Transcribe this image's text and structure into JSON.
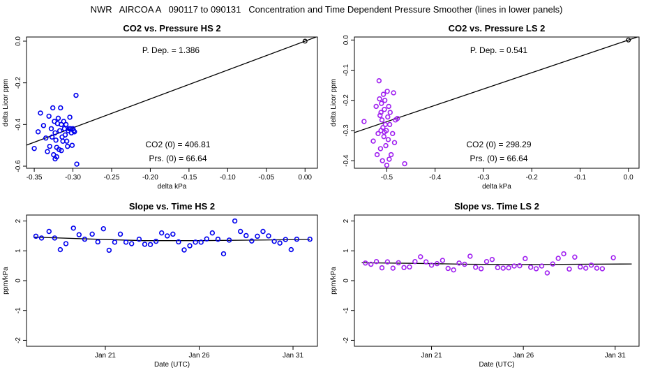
{
  "page": {
    "title": "NWR   AIRCOA A   090117 to 090131   Concentration and Time Dependent Pressure Smoother (lines in lower panels)"
  },
  "colors": {
    "hs": "#0000ee",
    "ls": "#a020f0",
    "line": "#000000"
  },
  "chart_data": [
    {
      "id": "co2-pressure-hs",
      "type": "scatter",
      "title": "CO2 vs. Pressure HS 2",
      "xlabel": "delta kPa",
      "ylabel": "delta Licor ppm",
      "xlim": [
        -0.36,
        0.016
      ],
      "ylim": [
        -0.61,
        0.02
      ],
      "xticks": [
        -0.35,
        -0.3,
        -0.25,
        -0.2,
        -0.15,
        -0.1,
        -0.05,
        0.0
      ],
      "xtick_labels": [
        "-0.35",
        "-0.30",
        "-0.25",
        "-0.20",
        "-0.15",
        "-0.10",
        "-0.05",
        "0.00"
      ],
      "yticks": [
        0.0,
        -0.2,
        -0.4,
        -0.6
      ],
      "ytick_labels": [
        "0.0",
        "-0.2",
        "-0.4",
        "-0.6"
      ],
      "annotations": {
        "p_dep": "P. Dep. =  1.386",
        "co2_zero": "CO2 (0) =  406.81",
        "prs_zero": "Prs. (0) =  66.64"
      },
      "fit_line": {
        "slope": 1.386,
        "intercept": 0.0
      },
      "origin_point": [
        0.0,
        0.0
      ],
      "points": [
        [
          -0.35,
          -0.515
        ],
        [
          -0.345,
          -0.435
        ],
        [
          -0.342,
          -0.345
        ],
        [
          -0.338,
          -0.405
        ],
        [
          -0.335,
          -0.465
        ],
        [
          -0.333,
          -0.53
        ],
        [
          -0.331,
          -0.36
        ],
        [
          -0.33,
          -0.505
        ],
        [
          -0.328,
          -0.42
        ],
        [
          -0.327,
          -0.46
        ],
        [
          -0.326,
          -0.32
        ],
        [
          -0.325,
          -0.545
        ],
        [
          -0.324,
          -0.385
        ],
        [
          -0.323,
          -0.44
        ],
        [
          -0.322,
          -0.475
        ],
        [
          -0.321,
          -0.51
        ],
        [
          -0.32,
          -0.395
        ],
        [
          -0.319,
          -0.37
        ],
        [
          -0.318,
          -0.52
        ],
        [
          -0.317,
          -0.43
        ],
        [
          -0.316,
          -0.32
        ],
        [
          -0.315,
          -0.4
        ],
        [
          -0.314,
          -0.46
        ],
        [
          -0.313,
          -0.48
        ],
        [
          -0.312,
          -0.385
        ],
        [
          -0.311,
          -0.42
        ],
        [
          -0.31,
          -0.45
        ],
        [
          -0.309,
          -0.4
        ],
        [
          -0.308,
          -0.48
        ],
        [
          -0.307,
          -0.505
        ],
        [
          -0.306,
          -0.43
        ],
        [
          -0.305,
          -0.42
        ],
        [
          -0.304,
          -0.365
        ],
        [
          -0.303,
          -0.42
        ],
        [
          -0.302,
          -0.44
        ],
        [
          -0.301,
          -0.5
        ],
        [
          -0.3,
          -0.42
        ],
        [
          -0.299,
          -0.43
        ],
        [
          -0.298,
          -0.435
        ],
        [
          -0.296,
          -0.26
        ],
        [
          -0.295,
          -0.59
        ],
        [
          -0.323,
          -0.565
        ],
        [
          -0.321,
          -0.555
        ],
        [
          -0.315,
          -0.525
        ]
      ]
    },
    {
      "id": "co2-pressure-ls",
      "type": "scatter",
      "title": "CO2 vs. Pressure LS 2",
      "xlabel": "delta kPa",
      "ylabel": "delta Licor ppm",
      "xlim": [
        -0.567,
        0.022
      ],
      "ylim": [
        -0.425,
        0.01
      ],
      "xticks": [
        -0.5,
        -0.4,
        -0.3,
        -0.2,
        -0.1,
        0.0
      ],
      "xtick_labels": [
        "-0.5",
        "-0.4",
        "-0.3",
        "-0.2",
        "-0.1",
        "0.0"
      ],
      "yticks": [
        0.0,
        -0.1,
        -0.2,
        -0.3,
        -0.4
      ],
      "ytick_labels": [
        "0.0",
        "-0.1",
        "-0.2",
        "-0.3",
        "-0.4"
      ],
      "annotations": {
        "p_dep": "P. Dep. =  0.541",
        "co2_zero": "CO2 (0) =  298.29",
        "prs_zero": "Prs. (0) =  66.64"
      },
      "fit_line": {
        "slope": 0.541,
        "intercept": 0.0
      },
      "origin_point": [
        0.0,
        0.0
      ],
      "points": [
        [
          -0.547,
          -0.27
        ],
        [
          -0.528,
          -0.335
        ],
        [
          -0.522,
          -0.22
        ],
        [
          -0.52,
          -0.38
        ],
        [
          -0.518,
          -0.31
        ],
        [
          -0.516,
          -0.135
        ],
        [
          -0.515,
          -0.195
        ],
        [
          -0.514,
          -0.25
        ],
        [
          -0.513,
          -0.36
        ],
        [
          -0.512,
          -0.24
        ],
        [
          -0.511,
          -0.21
        ],
        [
          -0.51,
          -0.265
        ],
        [
          -0.509,
          -0.4
        ],
        [
          -0.508,
          -0.29
        ],
        [
          -0.507,
          -0.18
        ],
        [
          -0.506,
          -0.32
        ],
        [
          -0.505,
          -0.23
        ],
        [
          -0.504,
          -0.2
        ],
        [
          -0.503,
          -0.28
        ],
        [
          -0.502,
          -0.35
        ],
        [
          -0.501,
          -0.3
        ],
        [
          -0.5,
          -0.415
        ],
        [
          -0.499,
          -0.17
        ],
        [
          -0.498,
          -0.255
        ],
        [
          -0.497,
          -0.33
        ],
        [
          -0.496,
          -0.22
        ],
        [
          -0.495,
          -0.395
        ],
        [
          -0.494,
          -0.28
        ],
        [
          -0.493,
          -0.24
        ],
        [
          -0.491,
          -0.38
        ],
        [
          -0.488,
          -0.31
        ],
        [
          -0.486,
          -0.175
        ],
        [
          -0.484,
          -0.34
        ],
        [
          -0.482,
          -0.265
        ],
        [
          -0.478,
          -0.26
        ],
        [
          -0.463,
          -0.41
        ],
        [
          -0.512,
          -0.3
        ],
        [
          -0.505,
          -0.305
        ]
      ]
    },
    {
      "id": "slope-time-hs",
      "type": "scatter",
      "title": "Slope vs. Time HS 2",
      "xlabel": "Date (UTC)",
      "ylabel": "ppm/kPa",
      "xlim": [
        16.8,
        32.3
      ],
      "ylim": [
        -2.2,
        2.2
      ],
      "xticks": [
        21,
        26,
        31
      ],
      "xtick_labels": [
        "Jan 21",
        "Jan 26",
        "Jan 31"
      ],
      "yticks": [
        -2,
        -1,
        0,
        1,
        2
      ],
      "ytick_labels": [
        "-2",
        "-1",
        "0",
        "1",
        "2"
      ],
      "smoother": [
        [
          17.2,
          1.46
        ],
        [
          20.0,
          1.4
        ],
        [
          23.0,
          1.34
        ],
        [
          26.0,
          1.34
        ],
        [
          29.0,
          1.36
        ],
        [
          31.9,
          1.38
        ]
      ],
      "points": [
        [
          17.3,
          1.49
        ],
        [
          17.6,
          1.43
        ],
        [
          18.0,
          1.65
        ],
        [
          18.3,
          1.43
        ],
        [
          18.6,
          1.04
        ],
        [
          18.9,
          1.24
        ],
        [
          19.3,
          1.76
        ],
        [
          19.6,
          1.54
        ],
        [
          19.9,
          1.39
        ],
        [
          20.3,
          1.56
        ],
        [
          20.6,
          1.3
        ],
        [
          20.9,
          1.74
        ],
        [
          21.2,
          1.02
        ],
        [
          21.5,
          1.29
        ],
        [
          21.8,
          1.56
        ],
        [
          22.1,
          1.29
        ],
        [
          22.4,
          1.24
        ],
        [
          22.8,
          1.39
        ],
        [
          23.1,
          1.22
        ],
        [
          23.4,
          1.21
        ],
        [
          23.7,
          1.32
        ],
        [
          24.0,
          1.6
        ],
        [
          24.3,
          1.5
        ],
        [
          24.6,
          1.56
        ],
        [
          24.9,
          1.3
        ],
        [
          25.2,
          1.03
        ],
        [
          25.5,
          1.17
        ],
        [
          25.8,
          1.29
        ],
        [
          26.1,
          1.29
        ],
        [
          26.4,
          1.4
        ],
        [
          26.7,
          1.6
        ],
        [
          27.0,
          1.39
        ],
        [
          27.3,
          0.9
        ],
        [
          27.6,
          1.36
        ],
        [
          27.9,
          2.0
        ],
        [
          28.2,
          1.65
        ],
        [
          28.5,
          1.51
        ],
        [
          28.8,
          1.33
        ],
        [
          29.1,
          1.49
        ],
        [
          29.4,
          1.65
        ],
        [
          29.7,
          1.5
        ],
        [
          30.0,
          1.32
        ],
        [
          30.3,
          1.26
        ],
        [
          30.6,
          1.38
        ],
        [
          30.9,
          1.04
        ],
        [
          31.2,
          1.39
        ],
        [
          31.9,
          1.39
        ]
      ]
    },
    {
      "id": "slope-time-ls",
      "type": "scatter",
      "title": "Slope vs. Time LS 2",
      "xlabel": "Date (UTC)",
      "ylabel": "ppm/kPa",
      "xlim": [
        16.8,
        32.3
      ],
      "ylim": [
        -2.2,
        2.2
      ],
      "xticks": [
        21,
        26,
        31
      ],
      "xtick_labels": [
        "Jan 21",
        "Jan 26",
        "Jan 31"
      ],
      "yticks": [
        -2,
        -1,
        0,
        1,
        2
      ],
      "ytick_labels": [
        "-2",
        "-1",
        "0",
        "1",
        "2"
      ],
      "smoother": [
        [
          17.2,
          0.6
        ],
        [
          20.0,
          0.58
        ],
        [
          23.0,
          0.55
        ],
        [
          26.0,
          0.54
        ],
        [
          29.0,
          0.55
        ],
        [
          31.9,
          0.56
        ]
      ],
      "points": [
        [
          17.4,
          0.59
        ],
        [
          17.7,
          0.55
        ],
        [
          18.0,
          0.64
        ],
        [
          18.3,
          0.43
        ],
        [
          18.6,
          0.63
        ],
        [
          18.9,
          0.42
        ],
        [
          19.2,
          0.6
        ],
        [
          19.5,
          0.44
        ],
        [
          19.8,
          0.46
        ],
        [
          20.1,
          0.64
        ],
        [
          20.4,
          0.8
        ],
        [
          20.7,
          0.63
        ],
        [
          21.0,
          0.52
        ],
        [
          21.3,
          0.57
        ],
        [
          21.6,
          0.68
        ],
        [
          21.9,
          0.41
        ],
        [
          22.2,
          0.36
        ],
        [
          22.5,
          0.59
        ],
        [
          22.8,
          0.55
        ],
        [
          23.1,
          0.82
        ],
        [
          23.4,
          0.45
        ],
        [
          23.7,
          0.4
        ],
        [
          24.0,
          0.64
        ],
        [
          24.3,
          0.71
        ],
        [
          24.6,
          0.44
        ],
        [
          24.9,
          0.42
        ],
        [
          25.2,
          0.43
        ],
        [
          25.5,
          0.49
        ],
        [
          25.8,
          0.5
        ],
        [
          26.1,
          0.74
        ],
        [
          26.4,
          0.45
        ],
        [
          26.7,
          0.4
        ],
        [
          27.0,
          0.49
        ],
        [
          27.3,
          0.26
        ],
        [
          27.6,
          0.56
        ],
        [
          27.9,
          0.75
        ],
        [
          28.2,
          0.9
        ],
        [
          28.5,
          0.39
        ],
        [
          28.8,
          0.79
        ],
        [
          29.1,
          0.46
        ],
        [
          29.4,
          0.42
        ],
        [
          29.7,
          0.52
        ],
        [
          30.0,
          0.42
        ],
        [
          30.3,
          0.4
        ],
        [
          30.9,
          0.77
        ]
      ]
    }
  ]
}
